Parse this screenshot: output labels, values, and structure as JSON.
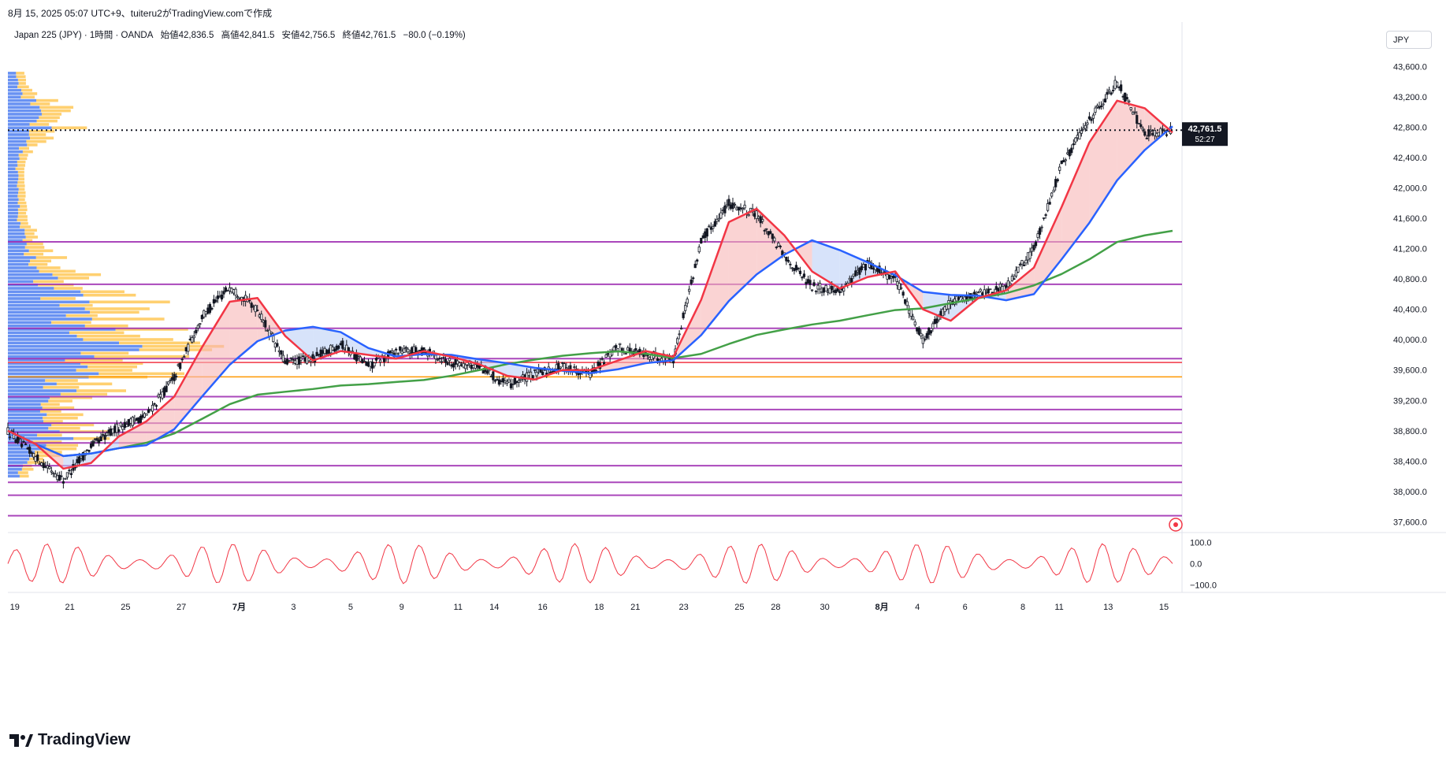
{
  "header": {
    "text": "8月 15, 2025 05:07 UTC+9、tuiteru2がTradingView.comで作成"
  },
  "legend": {
    "symbol": "Japan 225 (JPY) · 1時間 · OANDA",
    "open": "始値42,836.5",
    "high": "高値42,841.5",
    "low": "安値42,756.5",
    "close": "終値42,761.5",
    "change": "−80.0 (−0.19%)"
  },
  "currency": "JPY",
  "price_label": {
    "value": "42,761.5",
    "countdown": "52:27"
  },
  "brand": "TradingView",
  "colors": {
    "fast_ma": "#f23645",
    "slow_ma": "#2962ff",
    "long_ma": "#43a047",
    "fill_up": "#f7b6b6",
    "fill_down": "#bcd0f7",
    "hline": "#9c27b0",
    "orange_line": "#ff9800",
    "red_line": "#f23645",
    "vp_blue": "#4f7ff0",
    "vp_orange": "#ffc857",
    "osc": "#f23645"
  },
  "chart_data": [
    {
      "type": "candlestick",
      "y_ticks": [
        "43,600.0",
        "43,200.0",
        "42,800.0",
        "42,400.0",
        "42,000.0",
        "41,600.0",
        "41,200.0",
        "40,800.0",
        "40,400.0",
        "40,000.0",
        "39,600.0",
        "39,200.0",
        "38,800.0",
        "38,400.0",
        "38,000.0",
        "37,600.0"
      ],
      "ylim": [
        37500,
        43750
      ],
      "x_ticks": [
        "19",
        "21",
        "25",
        "27",
        "7月",
        "3",
        "5",
        "9",
        "11",
        "14",
        "16",
        "18",
        "21",
        "23",
        "25",
        "28",
        "30",
        "8月",
        "4",
        "6",
        "8",
        "11",
        "13",
        "15"
      ],
      "last_price": 42761.5,
      "horizontal_levels": [
        41290,
        40730,
        40150,
        39750,
        39250,
        39080,
        38900,
        38780,
        38640,
        38340,
        38120,
        37950,
        37680
      ],
      "red_level": 39700,
      "orange_level": 39510,
      "close_path": [
        [
          "6/19",
          38800
        ],
        [
          "6/20",
          38450
        ],
        [
          "6/21",
          38150
        ],
        [
          "6/23",
          38600
        ],
        [
          "6/24",
          38850
        ],
        [
          "6/25",
          39000
        ],
        [
          "6/26",
          39500
        ],
        [
          "6/27",
          40300
        ],
        [
          "6/30",
          40700
        ],
        [
          "7/1",
          40400
        ],
        [
          "7/2",
          39700
        ],
        [
          "7/3",
          39750
        ],
        [
          "7/4",
          39950
        ],
        [
          "7/7",
          39650
        ],
        [
          "7/8",
          39850
        ],
        [
          "7/9",
          39850
        ],
        [
          "7/10",
          39700
        ],
        [
          "7/11",
          39650
        ],
        [
          "7/14",
          39400
        ],
        [
          "7/15",
          39550
        ],
        [
          "7/16",
          39650
        ],
        [
          "7/17",
          39550
        ],
        [
          "7/18",
          39900
        ],
        [
          "7/21",
          39800
        ],
        [
          "7/22",
          39750
        ],
        [
          "7/23",
          41300
        ],
        [
          "7/24",
          41800
        ],
        [
          "7/25",
          41650
        ],
        [
          "7/28",
          41100
        ],
        [
          "7/29",
          40700
        ],
        [
          "7/30",
          40650
        ],
        [
          "7/31",
          41000
        ],
        [
          "8/1",
          40800
        ],
        [
          "8/4",
          40000
        ],
        [
          "8/5",
          40500
        ],
        [
          "8/6",
          40600
        ],
        [
          "8/7",
          40700
        ],
        [
          "8/8",
          41200
        ],
        [
          "8/11",
          42300
        ],
        [
          "8/12",
          42900
        ],
        [
          "8/13",
          43400
        ],
        [
          "8/14",
          42700
        ],
        [
          "8/15",
          42761.5
        ]
      ],
      "oscillator": {
        "ticks": [
          "100.0",
          "0.0",
          "−100.0"
        ],
        "ylim": [
          -110,
          110
        ]
      }
    }
  ]
}
